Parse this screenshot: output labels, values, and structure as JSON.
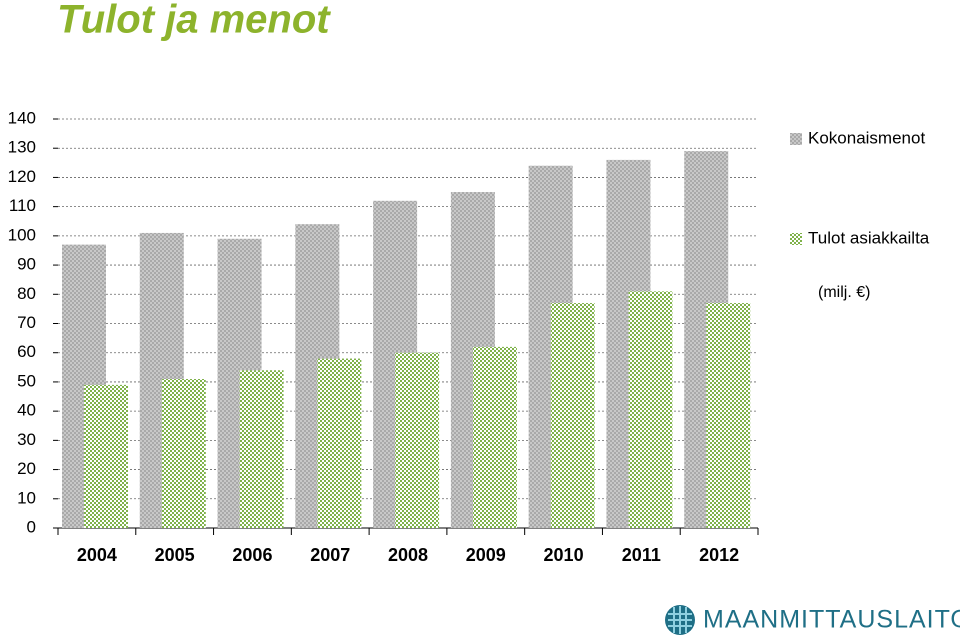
{
  "chart_data": {
    "type": "bar",
    "title": "Tulot ja menot",
    "categories": [
      "2004",
      "2005",
      "2006",
      "2007",
      "2008",
      "2009",
      "2010",
      "2011",
      "2012"
    ],
    "series": [
      {
        "name": "Kokonaismenot",
        "color": "#a9a9a9",
        "values": [
          97,
          101,
          99,
          104,
          112,
          115,
          124,
          126,
          129
        ]
      },
      {
        "name": "Tulot asiakkailta",
        "color": "#7fb24a",
        "values": [
          49,
          51,
          54,
          58,
          60,
          62,
          77,
          81,
          77
        ]
      }
    ],
    "annotation": "(milj. €)",
    "ylim": [
      0,
      140
    ],
    "yticks": [
      0,
      10,
      20,
      30,
      40,
      50,
      60,
      70,
      80,
      90,
      100,
      110,
      120,
      130,
      140
    ],
    "grid": true,
    "legend": "right"
  },
  "logo": "MAANMITTAUSLAITOS"
}
